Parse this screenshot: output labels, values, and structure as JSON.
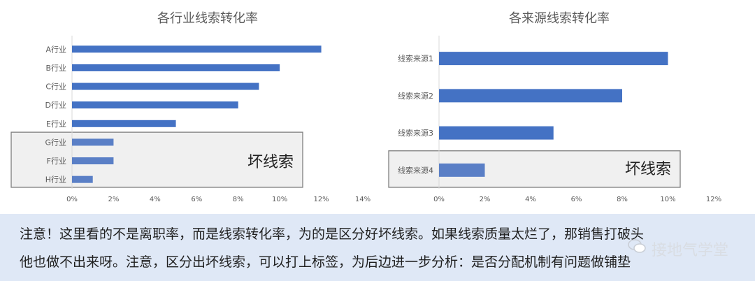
{
  "chart_data": [
    {
      "type": "bar",
      "orientation": "horizontal",
      "title": "各行业线索转化率",
      "categories": [
        "A行业",
        "B行业",
        "C行业",
        "D行业",
        "E行业",
        "G行业",
        "F行业",
        "H行业"
      ],
      "values": [
        0.12,
        0.1,
        0.09,
        0.08,
        0.05,
        0.02,
        0.02,
        0.01
      ],
      "xlim": [
        0,
        0.14
      ],
      "ticks": [
        "0%",
        "2%",
        "4%",
        "6%",
        "8%",
        "10%",
        "12%",
        "14%"
      ],
      "tick_values": [
        0,
        0.02,
        0.04,
        0.06,
        0.08,
        0.1,
        0.12,
        0.14
      ],
      "highlight": {
        "label": "坏线索",
        "categories": [
          "G行业",
          "F行业",
          "H行业"
        ]
      },
      "bar_color": "#4472c4",
      "highlight_bar_color": "#5a7fc6",
      "grid": false
    },
    {
      "type": "bar",
      "orientation": "horizontal",
      "title": "各来源线索转化率",
      "categories": [
        "线索来源1",
        "线索来源2",
        "线索来源3",
        "线索来源4"
      ],
      "values": [
        0.1,
        0.08,
        0.05,
        0.02
      ],
      "xlim": [
        0,
        0.12
      ],
      "ticks": [
        "0%",
        "2%",
        "4%",
        "6%",
        "8%",
        "10%",
        "12%"
      ],
      "tick_values": [
        0,
        0.02,
        0.04,
        0.06,
        0.08,
        0.1,
        0.12
      ],
      "highlight": {
        "label": "坏线索",
        "categories": [
          "线索来源4"
        ]
      },
      "bar_color": "#4472c4",
      "highlight_bar_color": "#5a7fc6",
      "grid": false
    }
  ],
  "note": {
    "line1": "注意！这里看的不是离职率，而是线索转化率，为的是区分好坏线索。如果线索质量太烂了，那销售打破头",
    "line2": "他也做不出来呀。注意，区分出坏线索，可以打上标签，为后边进一步分析：是否分配机制有问题做铺垫"
  },
  "watermark": {
    "text": "接地气学堂",
    "icon": "wechat-icon"
  },
  "colors": {
    "note_bg": "#dfe8f6",
    "box_bg": "#f0f0f0",
    "box_border": "#7f7f7f"
  }
}
